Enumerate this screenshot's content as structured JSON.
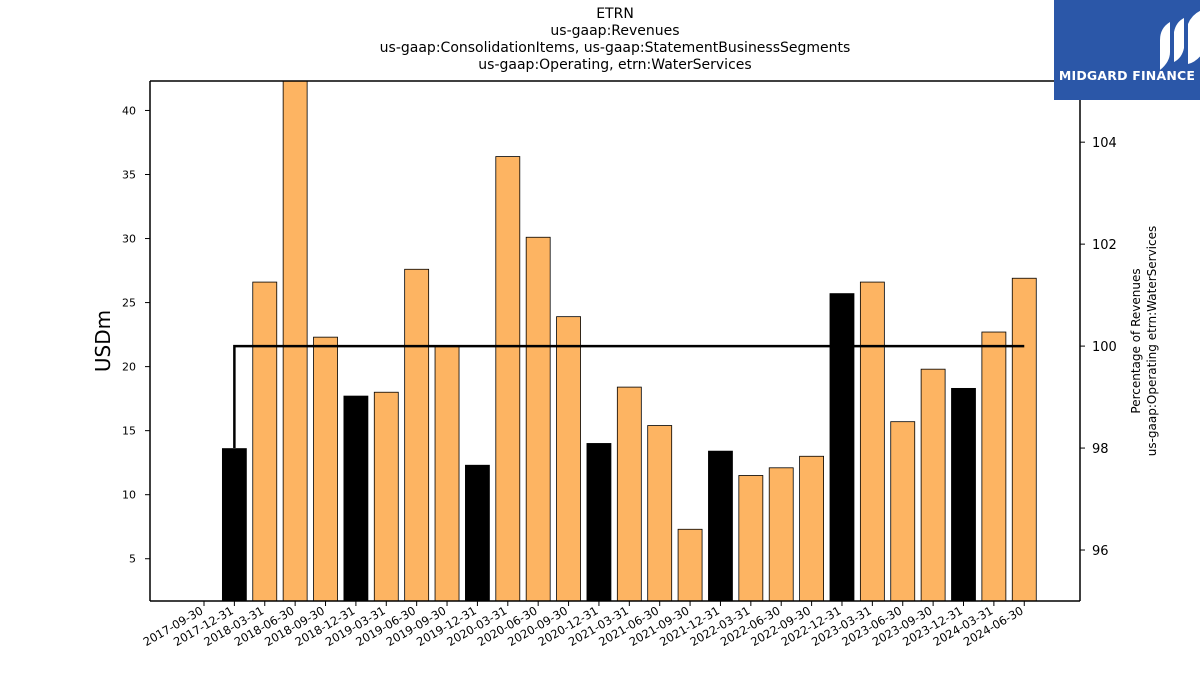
{
  "title_lines": [
    "ETRN",
    "us-gaap:Revenues",
    "us-gaap:ConsolidationItems, us-gaap:StatementBusinessSegments",
    "us-gaap:Operating, etrn:WaterServices"
  ],
  "brand": {
    "name": "MIDGARD FINANCE",
    "color": "#2b57a8"
  },
  "chart_data": {
    "type": "bar",
    "categories": [
      "2017-09-30",
      "2017-12-31",
      "2018-03-31",
      "2018-06-30",
      "2018-09-30",
      "2018-12-31",
      "2019-03-31",
      "2019-06-30",
      "2019-09-30",
      "2019-12-31",
      "2020-03-31",
      "2020-06-30",
      "2020-09-30",
      "2020-12-31",
      "2021-03-31",
      "2021-06-30",
      "2021-09-30",
      "2021-12-31",
      "2022-03-31",
      "2022-06-30",
      "2022-09-30",
      "2022-12-31",
      "2023-03-31",
      "2023-06-30",
      "2023-09-30",
      "2023-12-31",
      "2024-03-31",
      "2024-06-30"
    ],
    "bars": [
      {
        "x": "2017-12-31",
        "value": 13.6,
        "color": "#000000"
      },
      {
        "x": "2018-03-31",
        "value": 26.6,
        "color": "#fdb462"
      },
      {
        "x": "2018-06-30",
        "value": 42.3,
        "color": "#fdb462"
      },
      {
        "x": "2018-09-30",
        "value": 22.3,
        "color": "#fdb462"
      },
      {
        "x": "2018-12-31",
        "value": 17.7,
        "color": "#000000"
      },
      {
        "x": "2019-03-31",
        "value": 18.0,
        "color": "#fdb462"
      },
      {
        "x": "2019-06-30",
        "value": 27.6,
        "color": "#fdb462"
      },
      {
        "x": "2019-09-30",
        "value": 21.6,
        "color": "#fdb462"
      },
      {
        "x": "2019-12-31",
        "value": 12.3,
        "color": "#000000"
      },
      {
        "x": "2020-03-31",
        "value": 36.4,
        "color": "#fdb462"
      },
      {
        "x": "2020-06-30",
        "value": 30.1,
        "color": "#fdb462"
      },
      {
        "x": "2020-09-30",
        "value": 23.9,
        "color": "#fdb462"
      },
      {
        "x": "2020-12-31",
        "value": 14.0,
        "color": "#000000"
      },
      {
        "x": "2021-03-31",
        "value": 18.4,
        "color": "#fdb462"
      },
      {
        "x": "2021-06-30",
        "value": 15.4,
        "color": "#fdb462"
      },
      {
        "x": "2021-09-30",
        "value": 7.3,
        "color": "#fdb462"
      },
      {
        "x": "2021-12-31",
        "value": 13.4,
        "color": "#000000"
      },
      {
        "x": "2022-03-31",
        "value": 11.5,
        "color": "#fdb462"
      },
      {
        "x": "2022-06-30",
        "value": 12.1,
        "color": "#fdb462"
      },
      {
        "x": "2022-09-30",
        "value": 13.0,
        "color": "#fdb462"
      },
      {
        "x": "2022-12-31",
        "value": 25.7,
        "color": "#000000"
      },
      {
        "x": "2023-03-31",
        "value": 26.6,
        "color": "#fdb462"
      },
      {
        "x": "2023-06-30",
        "value": 15.7,
        "color": "#fdb462"
      },
      {
        "x": "2023-09-30",
        "value": 19.8,
        "color": "#fdb462"
      },
      {
        "x": "2023-12-31",
        "value": 18.3,
        "color": "#000000"
      },
      {
        "x": "2024-03-31",
        "value": 22.7,
        "color": "#fdb462"
      },
      {
        "x": "2024-06-30",
        "value": 26.9,
        "color": "#fdb462"
      }
    ],
    "line": {
      "points": [
        {
          "x": "2017-12-31",
          "value": 98.0
        },
        {
          "x": "2017-12-31",
          "value": 100.0
        },
        {
          "x": "2024-06-30",
          "value": 100.0
        }
      ],
      "color": "#000000"
    },
    "ylabel": "USDm",
    "ylabel_right": [
      "Percentage of Revenues",
      "us-gaap:Operating etrn:WaterServices"
    ],
    "ylim": [
      1.7,
      42.3
    ],
    "yticks": [
      5,
      10,
      15,
      20,
      25,
      30,
      35,
      40
    ],
    "ylim_right": [
      95.0,
      105.2
    ],
    "yticks_right": [
      96,
      98,
      100,
      102,
      104
    ],
    "grid": false
  }
}
